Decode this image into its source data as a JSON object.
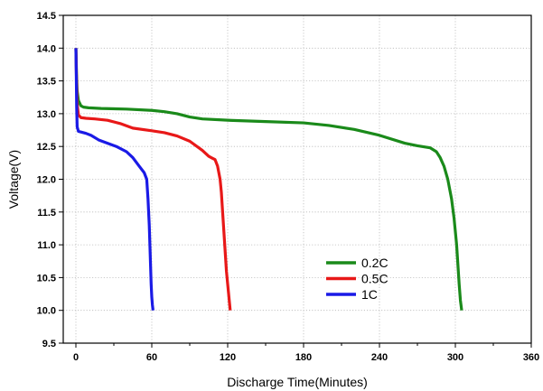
{
  "chart_data": {
    "type": "line",
    "title": "",
    "xlabel": "Discharge Time(Minutes)",
    "ylabel": "Voltage(V)",
    "xlim": [
      -10,
      360
    ],
    "ylim": [
      9.5,
      14.5
    ],
    "xticks": [
      "0",
      "60",
      "120",
      "180",
      "240",
      "300",
      "360"
    ],
    "yticks": [
      "9.5",
      "10.0",
      "10.5",
      "11.0",
      "11.5",
      "12.0",
      "12.5",
      "13.0",
      "13.5",
      "14.0",
      "14.5"
    ],
    "grid": true,
    "legend_position": "lower-right",
    "series": [
      {
        "name": "0.2C",
        "color": "#1a8a1a",
        "x": [
          0,
          0.5,
          1,
          2,
          4,
          6,
          10,
          20,
          40,
          60,
          70,
          80,
          90,
          100,
          120,
          150,
          180,
          200,
          220,
          240,
          260,
          270,
          280,
          285,
          288,
          291,
          294,
          297,
          299,
          301,
          302,
          303,
          304,
          305
        ],
        "y": [
          14.0,
          13.6,
          13.35,
          13.2,
          13.12,
          13.1,
          13.09,
          13.08,
          13.07,
          13.05,
          13.03,
          13.0,
          12.95,
          12.92,
          12.9,
          12.88,
          12.86,
          12.82,
          12.76,
          12.67,
          12.55,
          12.51,
          12.48,
          12.42,
          12.33,
          12.2,
          12.0,
          11.7,
          11.4,
          11.0,
          10.7,
          10.4,
          10.15,
          10.0
        ]
      },
      {
        "name": "0.5C",
        "color": "#e81818",
        "x": [
          0,
          0.5,
          1,
          2,
          4,
          8,
          15,
          25,
          35,
          45,
          60,
          70,
          80,
          90,
          100,
          105,
          108,
          110,
          112,
          114,
          115,
          116,
          117,
          118,
          119,
          120,
          121,
          121.5,
          122
        ],
        "y": [
          14.0,
          13.5,
          13.15,
          12.98,
          12.94,
          12.93,
          12.92,
          12.9,
          12.85,
          12.78,
          12.74,
          12.71,
          12.66,
          12.58,
          12.44,
          12.35,
          12.32,
          12.3,
          12.2,
          12.0,
          11.8,
          11.5,
          11.2,
          10.9,
          10.6,
          10.4,
          10.2,
          10.1,
          10.0
        ]
      },
      {
        "name": "1C",
        "color": "#1a1ae6",
        "x": [
          0,
          0.3,
          0.6,
          1,
          2,
          4,
          8,
          12,
          18,
          25,
          32,
          40,
          45,
          50,
          54,
          56,
          57,
          58,
          58.5,
          59,
          59.5,
          60,
          60.5,
          61
        ],
        "y": [
          14.0,
          13.6,
          13.1,
          12.8,
          12.73,
          12.72,
          12.7,
          12.67,
          12.6,
          12.55,
          12.5,
          12.42,
          12.33,
          12.2,
          12.1,
          12.0,
          11.7,
          11.3,
          11.0,
          10.7,
          10.4,
          10.2,
          10.08,
          10.0
        ]
      }
    ]
  }
}
